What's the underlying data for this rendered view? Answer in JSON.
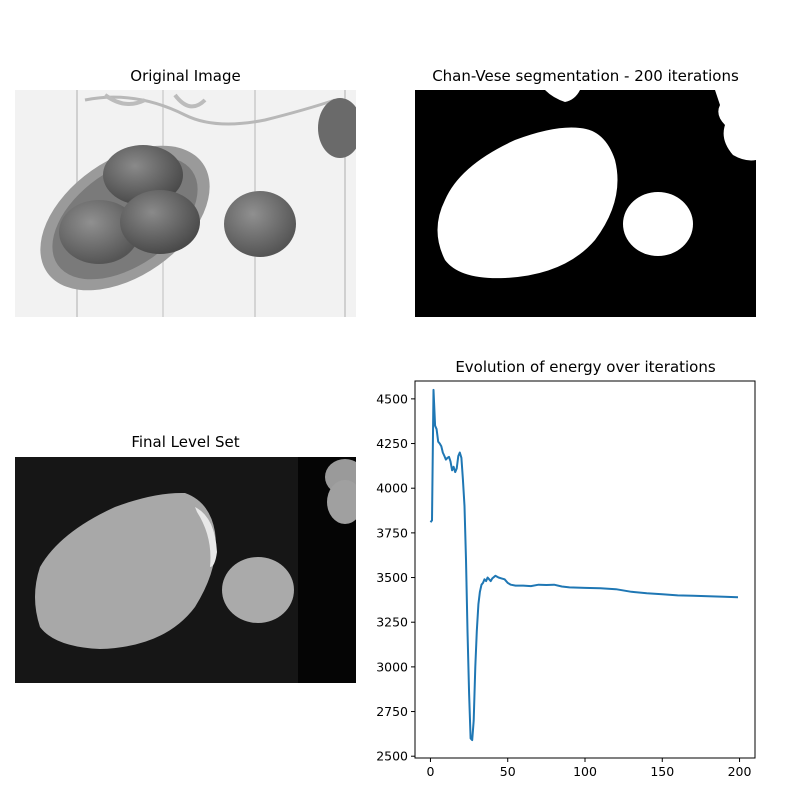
{
  "panels": {
    "original": {
      "title": "Original Image"
    },
    "segmentation": {
      "title": "Chan-Vese segmentation - 200 iterations"
    },
    "level_set": {
      "title": "Final Level Set"
    },
    "energy": {
      "title": "Evolution of energy over iterations"
    }
  },
  "colors": {
    "line": "#1f77b4",
    "axes": "#000000",
    "segmentation_bg": "#000000",
    "segmentation_fg": "#ffffff"
  },
  "chart_data": {
    "type": "line",
    "title": "Evolution of energy over iterations",
    "xlabel": "",
    "ylabel": "",
    "xlim": [
      -10,
      210
    ],
    "ylim": [
      2490,
      4600
    ],
    "x_ticks": [
      0,
      50,
      100,
      150,
      200
    ],
    "y_ticks": [
      2500,
      2750,
      3000,
      3250,
      3500,
      3750,
      4000,
      4250,
      4500
    ],
    "grid": false,
    "series": [
      {
        "x": [
          0,
          1,
          2,
          3,
          4,
          5,
          6,
          7,
          8,
          9,
          10,
          11,
          12,
          13,
          14,
          15,
          16,
          17,
          18,
          19,
          20,
          21,
          22,
          23,
          24,
          25,
          26,
          27,
          28,
          29,
          30,
          31,
          32,
          33,
          34,
          35,
          36,
          37,
          38,
          39,
          40,
          42,
          44,
          46,
          48,
          50,
          52,
          55,
          60,
          65,
          70,
          75,
          80,
          85,
          90,
          100,
          110,
          120,
          130,
          140,
          150,
          160,
          170,
          180,
          190,
          199
        ],
        "y": [
          3810,
          3820,
          4550,
          4350,
          4330,
          4260,
          4250,
          4235,
          4200,
          4180,
          4160,
          4170,
          4175,
          4150,
          4100,
          4120,
          4090,
          4110,
          4180,
          4200,
          4170,
          4050,
          3900,
          3600,
          3200,
          2850,
          2600,
          2590,
          2700,
          3000,
          3200,
          3350,
          3420,
          3460,
          3470,
          3490,
          3480,
          3500,
          3490,
          3480,
          3495,
          3510,
          3500,
          3495,
          3490,
          3470,
          3460,
          3455,
          3455,
          3452,
          3460,
          3458,
          3460,
          3450,
          3445,
          3442,
          3440,
          3435,
          3420,
          3412,
          3406,
          3400,
          3398,
          3395,
          3392,
          3390
        ]
      }
    ]
  }
}
